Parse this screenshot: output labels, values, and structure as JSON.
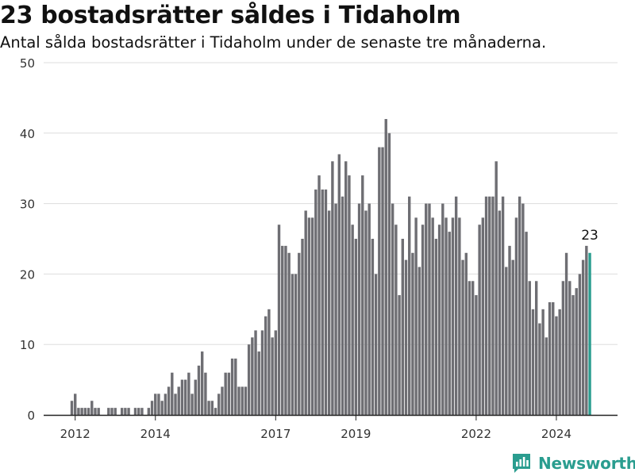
{
  "title": "23 bostadsrätter såldes i Tidaholm",
  "subtitle": "Antal sålda bostadsrätter i Tidaholm under de senaste tre månaderna.",
  "brand": "Newsworthy",
  "brand_logo_icon": "newsworthy-logo-icon",
  "colors": {
    "bar": "#6e6e73",
    "highlight": "#2a9d8f",
    "grid": "#dddddd",
    "axis": "#222222"
  },
  "chart_data": {
    "type": "bar",
    "title": "23 bostadsrätter såldes i Tidaholm",
    "subtitle": "Antal sålda bostadsrätter i Tidaholm under de senaste tre månaderna.",
    "xlabel": "",
    "ylabel": "",
    "ylim": [
      0,
      50
    ],
    "yticks": [
      "0",
      "10",
      "20",
      "30",
      "40",
      "50"
    ],
    "xticks": [
      "2012",
      "2014",
      "2017",
      "2019",
      "2022",
      "2024"
    ],
    "grid": true,
    "legend": "none",
    "start_month": "2011-12",
    "end_month": "2024-09",
    "values": [
      2,
      3,
      1,
      1,
      1,
      1,
      2,
      1,
      1,
      0,
      0,
      1,
      1,
      1,
      0,
      1,
      1,
      1,
      0,
      1,
      1,
      1,
      0,
      1,
      2,
      3,
      3,
      2,
      3,
      4,
      6,
      3,
      4,
      5,
      5,
      6,
      3,
      5,
      7,
      9,
      6,
      2,
      2,
      1,
      3,
      4,
      6,
      6,
      8,
      8,
      4,
      4,
      4,
      10,
      11,
      12,
      9,
      12,
      14,
      15,
      11,
      12,
      27,
      24,
      24,
      23,
      20,
      20,
      23,
      25,
      29,
      28,
      28,
      32,
      34,
      32,
      32,
      29,
      36,
      30,
      37,
      31,
      36,
      34,
      27,
      25,
      30,
      34,
      29,
      30,
      25,
      20,
      38,
      38,
      42,
      40,
      30,
      27,
      17,
      25,
      22,
      31,
      23,
      28,
      21,
      27,
      30,
      30,
      28,
      25,
      27,
      30,
      28,
      26,
      28,
      31,
      28,
      22,
      23,
      19,
      19,
      17,
      27,
      28,
      31,
      31,
      31,
      36,
      29,
      31,
      21,
      24,
      22,
      28,
      31,
      30,
      26,
      19,
      15,
      19,
      13,
      15,
      11,
      16,
      16,
      14,
      15,
      19,
      23,
      19,
      17,
      18,
      20,
      22,
      24,
      23
    ],
    "highlight": {
      "value": 23,
      "label": "23"
    }
  }
}
